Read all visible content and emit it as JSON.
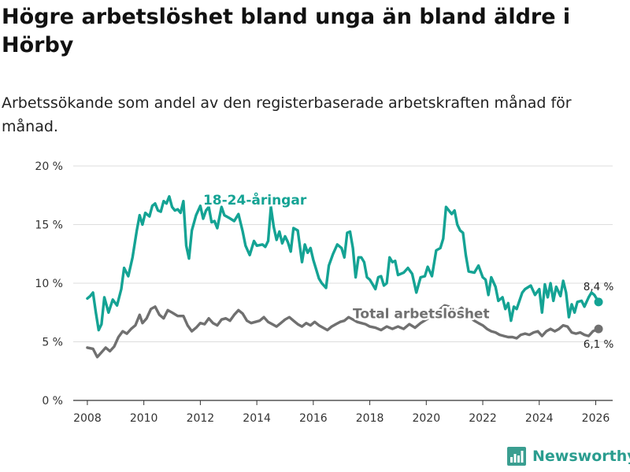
{
  "header": {
    "title": "Högre arbetslöshet bland unga än bland äldre i Hörby",
    "subtitle": "Arbetssökande som andel av den registerbaserade arbetskraften månad för månad."
  },
  "brand": {
    "name": "Newsworthy",
    "icon": "bar-chart-logo-icon",
    "color": "#3a9e90"
  },
  "chart_data": {
    "type": "line",
    "title": "Högre arbetslöshet bland unga än bland äldre i Hörby",
    "subtitle": "Arbetssökande som andel av den registerbaserade arbetskraften månad för månad.",
    "xlabel": "",
    "ylabel": "",
    "xlim": [
      2007.5,
      2026.6
    ],
    "ylim": [
      0,
      20
    ],
    "x_ticks": [
      2008,
      2010,
      2012,
      2014,
      2016,
      2018,
      2020,
      2022,
      2024,
      2026
    ],
    "y_ticks": [
      0,
      5,
      10,
      15,
      20
    ],
    "y_tick_labels": [
      "0 %",
      "5 %",
      "10 %",
      "15 %",
      "20 %"
    ],
    "grid": true,
    "series": [
      {
        "name": "18-24-åringar",
        "color": "#14a394",
        "end_label": "8,4 %",
        "points": [
          [
            2008.0,
            8.7
          ],
          [
            2008.1,
            8.9
          ],
          [
            2008.2,
            9.2
          ],
          [
            2008.3,
            7.5
          ],
          [
            2008.4,
            6.0
          ],
          [
            2008.5,
            6.5
          ],
          [
            2008.6,
            8.8
          ],
          [
            2008.75,
            7.5
          ],
          [
            2008.9,
            8.6
          ],
          [
            2009.05,
            8.1
          ],
          [
            2009.2,
            9.5
          ],
          [
            2009.3,
            11.3
          ],
          [
            2009.45,
            10.6
          ],
          [
            2009.6,
            12.2
          ],
          [
            2009.75,
            14.5
          ],
          [
            2009.85,
            15.8
          ],
          [
            2009.95,
            15.0
          ],
          [
            2010.05,
            16.0
          ],
          [
            2010.2,
            15.7
          ],
          [
            2010.3,
            16.6
          ],
          [
            2010.4,
            16.8
          ],
          [
            2010.5,
            16.2
          ],
          [
            2010.6,
            16.1
          ],
          [
            2010.7,
            17.0
          ],
          [
            2010.8,
            16.8
          ],
          [
            2010.9,
            17.4
          ],
          [
            2011.0,
            16.5
          ],
          [
            2011.1,
            16.2
          ],
          [
            2011.2,
            16.3
          ],
          [
            2011.3,
            16.0
          ],
          [
            2011.4,
            17.0
          ],
          [
            2011.5,
            13.2
          ],
          [
            2011.6,
            12.1
          ],
          [
            2011.7,
            14.5
          ],
          [
            2011.85,
            15.8
          ],
          [
            2012.0,
            16.6
          ],
          [
            2012.1,
            15.5
          ],
          [
            2012.2,
            16.2
          ],
          [
            2012.3,
            16.5
          ],
          [
            2012.4,
            15.2
          ],
          [
            2012.5,
            15.3
          ],
          [
            2012.6,
            14.7
          ],
          [
            2012.75,
            16.5
          ],
          [
            2012.85,
            15.8
          ],
          [
            2013.0,
            15.6
          ],
          [
            2013.2,
            15.3
          ],
          [
            2013.35,
            15.9
          ],
          [
            2013.5,
            14.4
          ],
          [
            2013.6,
            13.2
          ],
          [
            2013.75,
            12.4
          ],
          [
            2013.9,
            13.6
          ],
          [
            2014.0,
            13.2
          ],
          [
            2014.2,
            13.3
          ],
          [
            2014.3,
            13.1
          ],
          [
            2014.4,
            13.6
          ],
          [
            2014.5,
            16.5
          ],
          [
            2014.6,
            14.8
          ],
          [
            2014.7,
            13.7
          ],
          [
            2014.8,
            14.4
          ],
          [
            2014.9,
            13.4
          ],
          [
            2015.0,
            14.0
          ],
          [
            2015.1,
            13.5
          ],
          [
            2015.2,
            12.7
          ],
          [
            2015.3,
            14.7
          ],
          [
            2015.45,
            14.5
          ],
          [
            2015.6,
            11.8
          ],
          [
            2015.7,
            13.3
          ],
          [
            2015.8,
            12.6
          ],
          [
            2015.9,
            13.0
          ],
          [
            2016.0,
            12.0
          ],
          [
            2016.1,
            11.2
          ],
          [
            2016.2,
            10.4
          ],
          [
            2016.3,
            10.0
          ],
          [
            2016.45,
            9.6
          ],
          [
            2016.55,
            11.5
          ],
          [
            2016.7,
            12.5
          ],
          [
            2016.85,
            13.3
          ],
          [
            2017.0,
            13.0
          ],
          [
            2017.1,
            12.2
          ],
          [
            2017.2,
            14.3
          ],
          [
            2017.3,
            14.4
          ],
          [
            2017.4,
            13.0
          ],
          [
            2017.5,
            10.5
          ],
          [
            2017.6,
            12.2
          ],
          [
            2017.7,
            12.2
          ],
          [
            2017.8,
            11.8
          ],
          [
            2017.9,
            10.5
          ],
          [
            2018.0,
            10.3
          ],
          [
            2018.1,
            9.9
          ],
          [
            2018.2,
            9.5
          ],
          [
            2018.3,
            10.5
          ],
          [
            2018.4,
            10.6
          ],
          [
            2018.5,
            9.8
          ],
          [
            2018.6,
            10.0
          ],
          [
            2018.7,
            12.2
          ],
          [
            2018.8,
            11.8
          ],
          [
            2018.9,
            11.9
          ],
          [
            2019.0,
            10.7
          ],
          [
            2019.2,
            10.9
          ],
          [
            2019.35,
            11.3
          ],
          [
            2019.5,
            10.8
          ],
          [
            2019.65,
            9.2
          ],
          [
            2019.8,
            10.5
          ],
          [
            2019.95,
            10.6
          ],
          [
            2020.05,
            11.4
          ],
          [
            2020.2,
            10.6
          ],
          [
            2020.35,
            12.8
          ],
          [
            2020.5,
            13.0
          ],
          [
            2020.6,
            13.8
          ],
          [
            2020.7,
            16.5
          ],
          [
            2020.8,
            16.2
          ],
          [
            2020.9,
            15.9
          ],
          [
            2021.0,
            16.2
          ],
          [
            2021.1,
            15.0
          ],
          [
            2021.2,
            14.5
          ],
          [
            2021.3,
            14.3
          ],
          [
            2021.4,
            12.4
          ],
          [
            2021.5,
            11.0
          ],
          [
            2021.7,
            10.9
          ],
          [
            2021.85,
            11.5
          ],
          [
            2022.0,
            10.5
          ],
          [
            2022.1,
            10.3
          ],
          [
            2022.2,
            9.0
          ],
          [
            2022.3,
            10.5
          ],
          [
            2022.45,
            9.7
          ],
          [
            2022.55,
            8.5
          ],
          [
            2022.7,
            8.8
          ],
          [
            2022.8,
            7.8
          ],
          [
            2022.9,
            8.3
          ],
          [
            2023.0,
            6.8
          ],
          [
            2023.1,
            8.0
          ],
          [
            2023.2,
            7.8
          ],
          [
            2023.3,
            8.5
          ],
          [
            2023.4,
            9.2
          ],
          [
            2023.5,
            9.5
          ],
          [
            2023.7,
            9.8
          ],
          [
            2023.85,
            9.0
          ],
          [
            2024.0,
            9.5
          ],
          [
            2024.1,
            7.5
          ],
          [
            2024.2,
            9.9
          ],
          [
            2024.3,
            8.8
          ],
          [
            2024.4,
            10.0
          ],
          [
            2024.5,
            8.5
          ],
          [
            2024.6,
            9.7
          ],
          [
            2024.75,
            8.9
          ],
          [
            2024.85,
            10.2
          ],
          [
            2024.95,
            9.2
          ],
          [
            2025.05,
            7.1
          ],
          [
            2025.15,
            8.2
          ],
          [
            2025.25,
            7.5
          ],
          [
            2025.35,
            8.4
          ],
          [
            2025.5,
            8.5
          ],
          [
            2025.6,
            8.0
          ],
          [
            2025.75,
            8.8
          ],
          [
            2025.85,
            9.2
          ],
          [
            2025.95,
            9.0
          ],
          [
            2026.1,
            8.4
          ]
        ]
      },
      {
        "name": "Total arbetslöshet",
        "color": "#707070",
        "end_label": "6,1 %",
        "points": [
          [
            2008.0,
            4.5
          ],
          [
            2008.2,
            4.4
          ],
          [
            2008.35,
            3.7
          ],
          [
            2008.5,
            4.1
          ],
          [
            2008.65,
            4.5
          ],
          [
            2008.8,
            4.2
          ],
          [
            2008.95,
            4.6
          ],
          [
            2009.1,
            5.4
          ],
          [
            2009.25,
            5.9
          ],
          [
            2009.4,
            5.7
          ],
          [
            2009.55,
            6.1
          ],
          [
            2009.7,
            6.4
          ],
          [
            2009.85,
            7.3
          ],
          [
            2009.95,
            6.6
          ],
          [
            2010.1,
            7.0
          ],
          [
            2010.25,
            7.8
          ],
          [
            2010.4,
            8.0
          ],
          [
            2010.55,
            7.3
          ],
          [
            2010.7,
            7.0
          ],
          [
            2010.85,
            7.7
          ],
          [
            2011.0,
            7.5
          ],
          [
            2011.2,
            7.2
          ],
          [
            2011.4,
            7.2
          ],
          [
            2011.55,
            6.4
          ],
          [
            2011.7,
            5.9
          ],
          [
            2011.85,
            6.2
          ],
          [
            2012.0,
            6.6
          ],
          [
            2012.15,
            6.5
          ],
          [
            2012.3,
            7.0
          ],
          [
            2012.45,
            6.6
          ],
          [
            2012.6,
            6.4
          ],
          [
            2012.75,
            6.9
          ],
          [
            2012.9,
            7.0
          ],
          [
            2013.05,
            6.8
          ],
          [
            2013.2,
            7.3
          ],
          [
            2013.35,
            7.7
          ],
          [
            2013.5,
            7.4
          ],
          [
            2013.65,
            6.8
          ],
          [
            2013.8,
            6.6
          ],
          [
            2013.95,
            6.7
          ],
          [
            2014.1,
            6.8
          ],
          [
            2014.25,
            7.1
          ],
          [
            2014.4,
            6.7
          ],
          [
            2014.55,
            6.5
          ],
          [
            2014.7,
            6.3
          ],
          [
            2014.85,
            6.6
          ],
          [
            2015.0,
            6.9
          ],
          [
            2015.15,
            7.1
          ],
          [
            2015.3,
            6.8
          ],
          [
            2015.45,
            6.5
          ],
          [
            2015.6,
            6.3
          ],
          [
            2015.75,
            6.6
          ],
          [
            2015.9,
            6.4
          ],
          [
            2016.05,
            6.7
          ],
          [
            2016.2,
            6.4
          ],
          [
            2016.35,
            6.2
          ],
          [
            2016.5,
            6.0
          ],
          [
            2016.65,
            6.3
          ],
          [
            2016.8,
            6.5
          ],
          [
            2016.95,
            6.7
          ],
          [
            2017.1,
            6.8
          ],
          [
            2017.25,
            7.1
          ],
          [
            2017.4,
            6.9
          ],
          [
            2017.55,
            6.7
          ],
          [
            2017.7,
            6.6
          ],
          [
            2017.85,
            6.5
          ],
          [
            2018.0,
            6.3
          ],
          [
            2018.2,
            6.2
          ],
          [
            2018.4,
            6.0
          ],
          [
            2018.6,
            6.3
          ],
          [
            2018.8,
            6.1
          ],
          [
            2019.0,
            6.3
          ],
          [
            2019.2,
            6.1
          ],
          [
            2019.4,
            6.5
          ],
          [
            2019.6,
            6.2
          ],
          [
            2019.8,
            6.6
          ],
          [
            2020.0,
            6.9
          ],
          [
            2020.2,
            7.2
          ],
          [
            2020.35,
            7.5
          ],
          [
            2020.5,
            7.8
          ],
          [
            2020.65,
            8.1
          ],
          [
            2020.8,
            8.0
          ],
          [
            2020.95,
            7.7
          ],
          [
            2021.1,
            7.6
          ],
          [
            2021.25,
            7.9
          ],
          [
            2021.4,
            7.6
          ],
          [
            2021.55,
            7.1
          ],
          [
            2021.7,
            6.8
          ],
          [
            2021.85,
            6.6
          ],
          [
            2022.0,
            6.4
          ],
          [
            2022.15,
            6.1
          ],
          [
            2022.3,
            5.9
          ],
          [
            2022.45,
            5.8
          ],
          [
            2022.6,
            5.6
          ],
          [
            2022.75,
            5.5
          ],
          [
            2022.9,
            5.4
          ],
          [
            2023.05,
            5.4
          ],
          [
            2023.2,
            5.3
          ],
          [
            2023.35,
            5.6
          ],
          [
            2023.5,
            5.7
          ],
          [
            2023.65,
            5.6
          ],
          [
            2023.8,
            5.8
          ],
          [
            2023.95,
            5.9
          ],
          [
            2024.1,
            5.5
          ],
          [
            2024.25,
            5.9
          ],
          [
            2024.4,
            6.1
          ],
          [
            2024.55,
            5.9
          ],
          [
            2024.7,
            6.1
          ],
          [
            2024.85,
            6.4
          ],
          [
            2025.0,
            6.3
          ],
          [
            2025.15,
            5.8
          ],
          [
            2025.3,
            5.7
          ],
          [
            2025.45,
            5.8
          ],
          [
            2025.6,
            5.6
          ],
          [
            2025.75,
            5.5
          ],
          [
            2025.9,
            5.9
          ],
          [
            2026.1,
            6.1
          ]
        ]
      }
    ],
    "annotations": [
      {
        "text": "18-24-åringar",
        "series": "18-24-åringar",
        "x": 2012.1,
        "y": 16.7
      },
      {
        "text": "Total arbetslöshet",
        "series": "Total arbetslöshet",
        "x": 2017.4,
        "y": 7.0
      }
    ]
  }
}
